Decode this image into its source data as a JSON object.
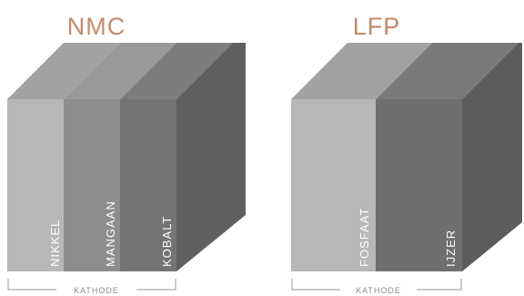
{
  "diagrams": [
    {
      "title": "NMC",
      "layers": [
        {
          "label": "NIKKEL",
          "front": "#b7b7b7",
          "top": "#a2a2a2"
        },
        {
          "label": "MANGAAN",
          "front": "#8d8d8d",
          "top": "#999999"
        },
        {
          "label": "KOBALT",
          "front": "#747474",
          "top": "#7d7d7d"
        }
      ],
      "side_color": "#5f5f5f",
      "bracket_label": "KATHODE"
    },
    {
      "title": "LFP",
      "layers": [
        {
          "label": "FOSFAAT",
          "front": "#b7b7b7",
          "top": "#a2a2a2"
        },
        {
          "label": "IJZER",
          "front": "#6f6f6f",
          "top": "#7a7a7a"
        }
      ],
      "side_color": "#5c5c5c",
      "bracket_label": "KATHODE"
    }
  ]
}
